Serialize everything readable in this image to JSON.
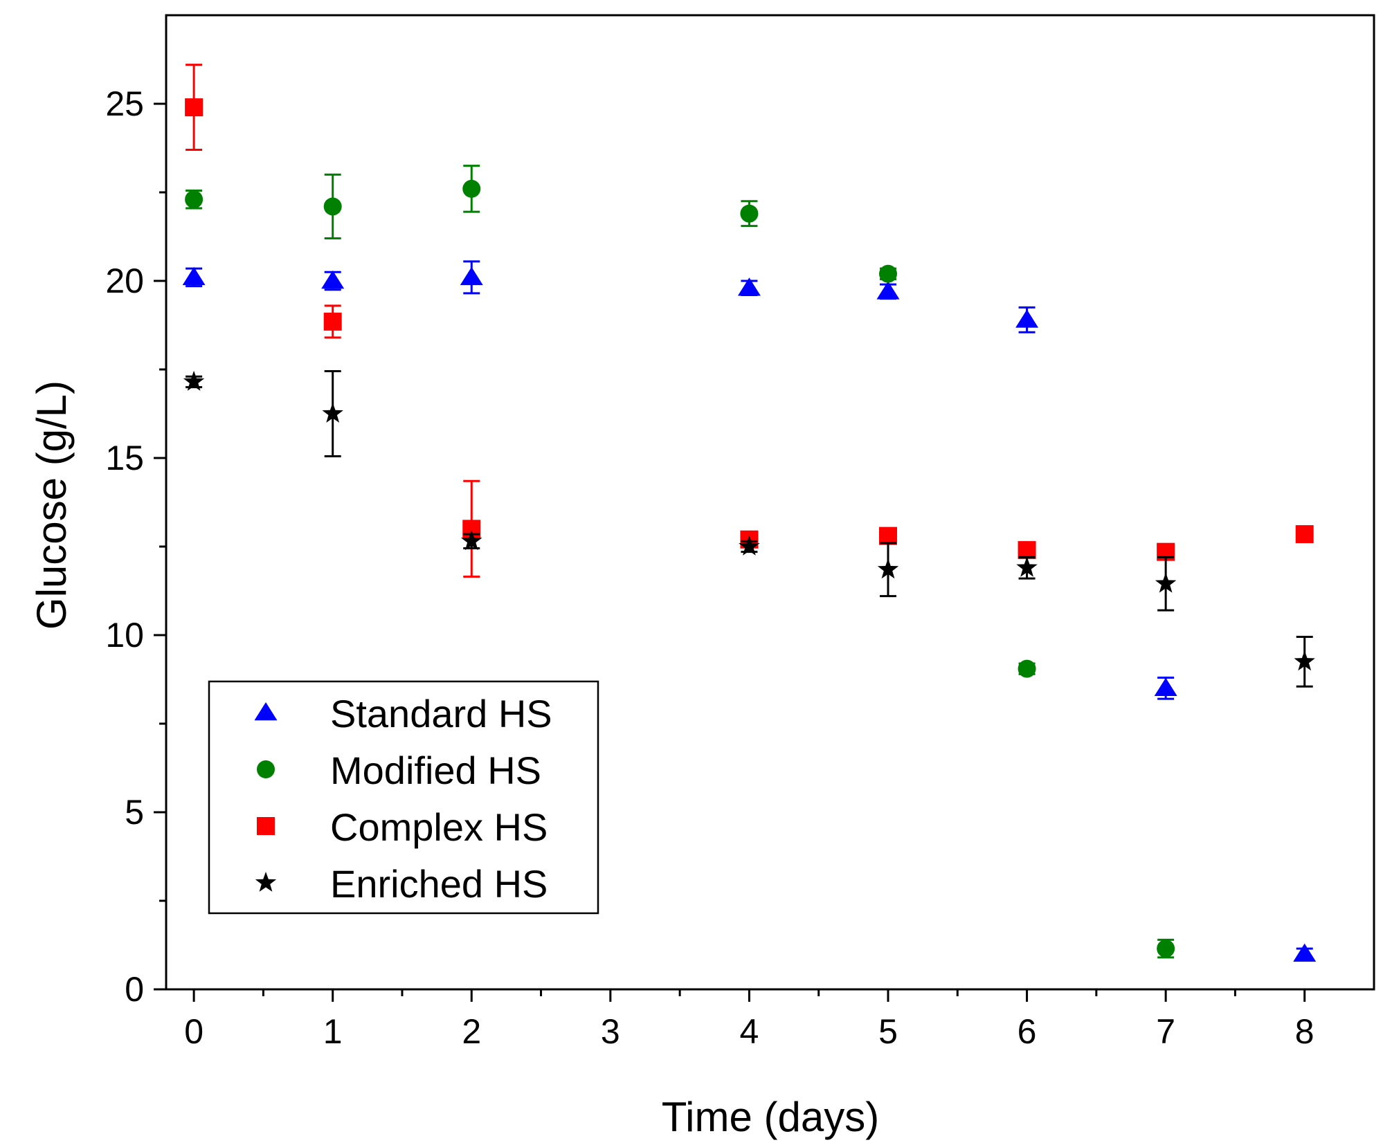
{
  "chart_data": {
    "type": "scatter",
    "title": "",
    "xlabel": "Time (days)",
    "ylabel": "Glucose (g/L)",
    "xlim": [
      -0.2,
      8.5
    ],
    "ylim": [
      0,
      27.5
    ],
    "x_ticks": [
      0,
      1,
      2,
      3,
      4,
      5,
      6,
      7,
      8
    ],
    "x_tick_labels": [
      "0",
      "1",
      "2",
      "3",
      "4",
      "5",
      "6",
      "7",
      "8"
    ],
    "y_ticks": [
      0,
      5,
      10,
      15,
      20,
      25
    ],
    "y_tick_labels": [
      "0",
      "5",
      "10",
      "15",
      "20",
      "25"
    ],
    "legend_position": "bottom-left",
    "series": [
      {
        "name": "Standard HS",
        "marker": "triangle",
        "color": "#0000ff",
        "x": [
          0,
          1,
          2,
          4,
          5,
          6,
          7,
          8
        ],
        "y": [
          20.1,
          20.0,
          20.1,
          19.8,
          19.7,
          18.9,
          8.5,
          1.0
        ],
        "err": [
          0.25,
          0.25,
          0.45,
          0.2,
          0.2,
          0.35,
          0.3,
          0.15
        ]
      },
      {
        "name": "Modified HS",
        "marker": "circle",
        "color": "#008000",
        "x": [
          0,
          1,
          2,
          4,
          5,
          6,
          7
        ],
        "y": [
          22.3,
          22.1,
          22.6,
          21.9,
          20.2,
          9.05,
          1.15
        ],
        "err": [
          0.25,
          0.9,
          0.65,
          0.35,
          0.15,
          0.15,
          0.25
        ]
      },
      {
        "name": "Complex HS",
        "marker": "square",
        "color": "#ff0000",
        "x": [
          0,
          1,
          2,
          4,
          5,
          6,
          7,
          8
        ],
        "y": [
          24.9,
          18.85,
          13.0,
          12.7,
          12.8,
          12.4,
          12.35,
          12.85
        ],
        "err": [
          1.2,
          0.45,
          1.35,
          0.15,
          0.2,
          0.2,
          0.15,
          0.2
        ]
      },
      {
        "name": "Enriched HS",
        "marker": "star",
        "color": "#000000",
        "x": [
          0,
          1,
          2,
          4,
          5,
          6,
          7,
          8
        ],
        "y": [
          17.15,
          16.25,
          12.65,
          12.5,
          11.85,
          11.9,
          11.45,
          9.25
        ],
        "err": [
          0.15,
          1.2,
          0.2,
          0.15,
          0.75,
          0.3,
          0.75,
          0.7
        ]
      }
    ]
  }
}
